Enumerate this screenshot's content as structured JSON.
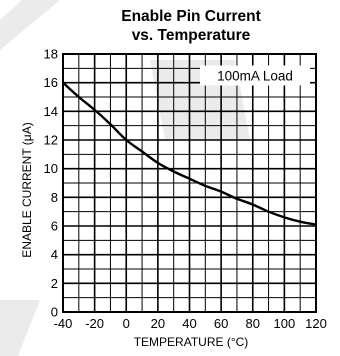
{
  "chart_data": {
    "type": "line",
    "title": [
      "Enable Pin Current",
      "vs. Temperature"
    ],
    "xlabel": "TEMPERATURE (°C)",
    "ylabel": "ENABLE CURRENT (μA)",
    "xlim": [
      -40,
      120
    ],
    "ylim": [
      0,
      18
    ],
    "xticks": [
      -40,
      -20,
      0,
      20,
      40,
      60,
      80,
      100,
      120
    ],
    "xtick_labels": [
      "-40",
      "-20",
      "0",
      "20",
      "40",
      "60",
      "80",
      "100",
      "120"
    ],
    "yticks": [
      0,
      2,
      4,
      6,
      8,
      10,
      12,
      14,
      16,
      18
    ],
    "ytick_labels": [
      "0",
      "2",
      "4",
      "6",
      "8",
      "10",
      "12",
      "14",
      "16",
      "18"
    ],
    "grid": true,
    "annotation": "100mA Load",
    "annotation_placement": "top-right",
    "series": [
      {
        "x": [
          -40,
          -30,
          -20,
          -10,
          0,
          10,
          20,
          30,
          40,
          50,
          60,
          70,
          80,
          90,
          100,
          110,
          120
        ],
        "y": [
          16.0,
          15.0,
          14.1,
          13.1,
          12.0,
          11.2,
          10.4,
          9.8,
          9.3,
          8.8,
          8.4,
          7.9,
          7.5,
          7.0,
          6.6,
          6.3,
          6.1
        ]
      }
    ]
  },
  "colors": {
    "line": "#000000",
    "grid": "#000000",
    "watermark": "#ebebeb"
  }
}
